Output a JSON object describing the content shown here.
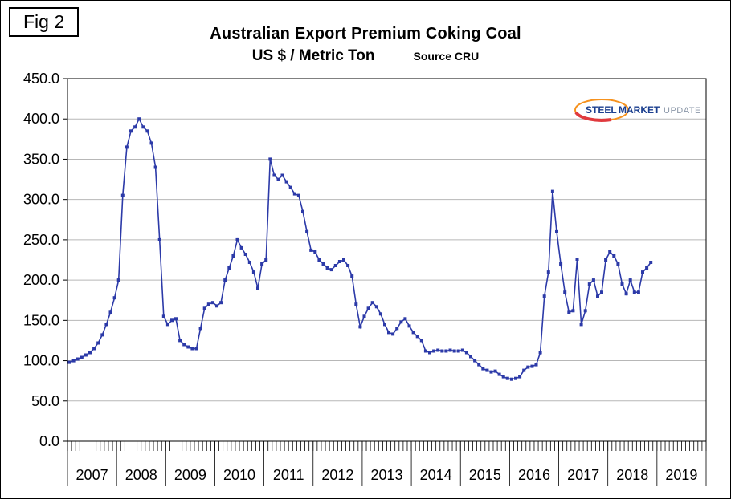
{
  "fig_label": "Fig 2",
  "title": "Australian Export Premium Coking Coal",
  "subtitle": "US $ / Metric Ton",
  "source": "Source CRU",
  "logo": {
    "word1": "STEEL",
    "word2": "MARKET",
    "word3": "UPDATE"
  },
  "chart_data": {
    "type": "line",
    "title": "Australian Export Premium Coking Coal",
    "ylabel": "US $ / Metric Ton",
    "xlabel": "",
    "ylim": [
      0,
      450
    ],
    "ytick_step": 50,
    "grid": "horizontal",
    "legend": "none",
    "line_color": "#2c3aa8",
    "marker": "square",
    "x_years": [
      2007,
      2008,
      2009,
      2010,
      2011,
      2012,
      2013,
      2014,
      2015,
      2016,
      2017,
      2018,
      2019
    ],
    "series": [
      {
        "name": "Australian Export Premium Coking Coal (US $ / Metric Ton)",
        "start": "2007-01",
        "frequency": "monthly",
        "values": [
          98,
          100,
          102,
          104,
          107,
          110,
          115,
          122,
          132,
          145,
          160,
          178,
          200,
          305,
          365,
          385,
          390,
          400,
          390,
          385,
          370,
          340,
          250,
          155,
          145,
          150,
          152,
          125,
          120,
          117,
          115,
          115,
          140,
          165,
          170,
          172,
          168,
          172,
          200,
          215,
          230,
          250,
          240,
          232,
          222,
          210,
          190,
          220,
          225,
          350,
          330,
          325,
          330,
          322,
          315,
          307,
          305,
          285,
          260,
          237,
          235,
          225,
          220,
          215,
          213,
          218,
          223,
          225,
          218,
          205,
          170,
          142,
          155,
          165,
          172,
          167,
          158,
          145,
          135,
          133,
          140,
          148,
          152,
          143,
          135,
          130,
          125,
          112,
          110,
          112,
          113,
          112,
          112,
          113,
          112,
          112,
          113,
          110,
          105,
          100,
          95,
          90,
          88,
          86,
          87,
          83,
          80,
          78,
          77,
          78,
          80,
          88,
          92,
          93,
          95,
          110,
          180,
          210,
          310,
          260,
          220,
          185,
          160,
          162,
          226,
          145,
          162,
          195,
          200,
          180,
          185,
          225,
          235,
          230,
          220,
          195,
          183,
          200,
          185,
          185,
          210,
          215,
          222
        ]
      }
    ]
  }
}
